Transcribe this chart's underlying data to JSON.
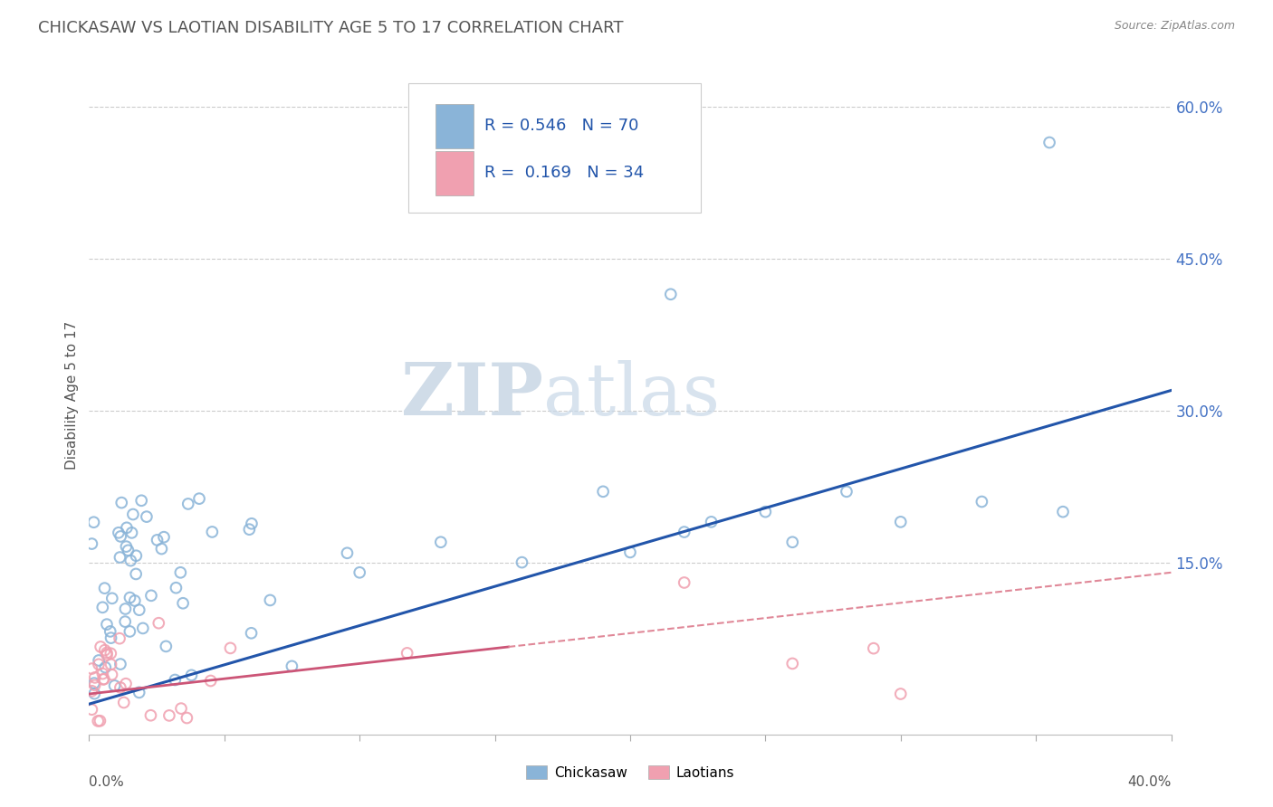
{
  "title": "CHICKASAW VS LAOTIAN DISABILITY AGE 5 TO 17 CORRELATION CHART",
  "source": "Source: ZipAtlas.com",
  "ylabel": "Disability Age 5 to 17",
  "right_yticks": [
    0.0,
    0.15,
    0.3,
    0.45,
    0.6
  ],
  "right_yticklabels": [
    "",
    "15.0%",
    "30.0%",
    "45.0%",
    "60.0%"
  ],
  "xlim": [
    0.0,
    0.4
  ],
  "ylim": [
    -0.02,
    0.65
  ],
  "chickasaw_R": 0.546,
  "chickasaw_N": 70,
  "laotian_R": 0.169,
  "laotian_N": 34,
  "chickasaw_color": "#8ab4d8",
  "laotian_color": "#f0a0b0",
  "chickasaw_line_color": "#2255aa",
  "laotian_solid_color": "#cc5577",
  "laotian_dash_color": "#e08898",
  "legend_label_chickasaw": "Chickasaw",
  "legend_label_laotian": "Laotians",
  "watermark_zip": "ZIP",
  "watermark_atlas": "atlas",
  "background_color": "#ffffff",
  "grid_color": "#cccccc",
  "title_color": "#555555",
  "source_color": "#888888",
  "legend_text_color": "#2255aa",
  "axis_label_color": "#555555"
}
